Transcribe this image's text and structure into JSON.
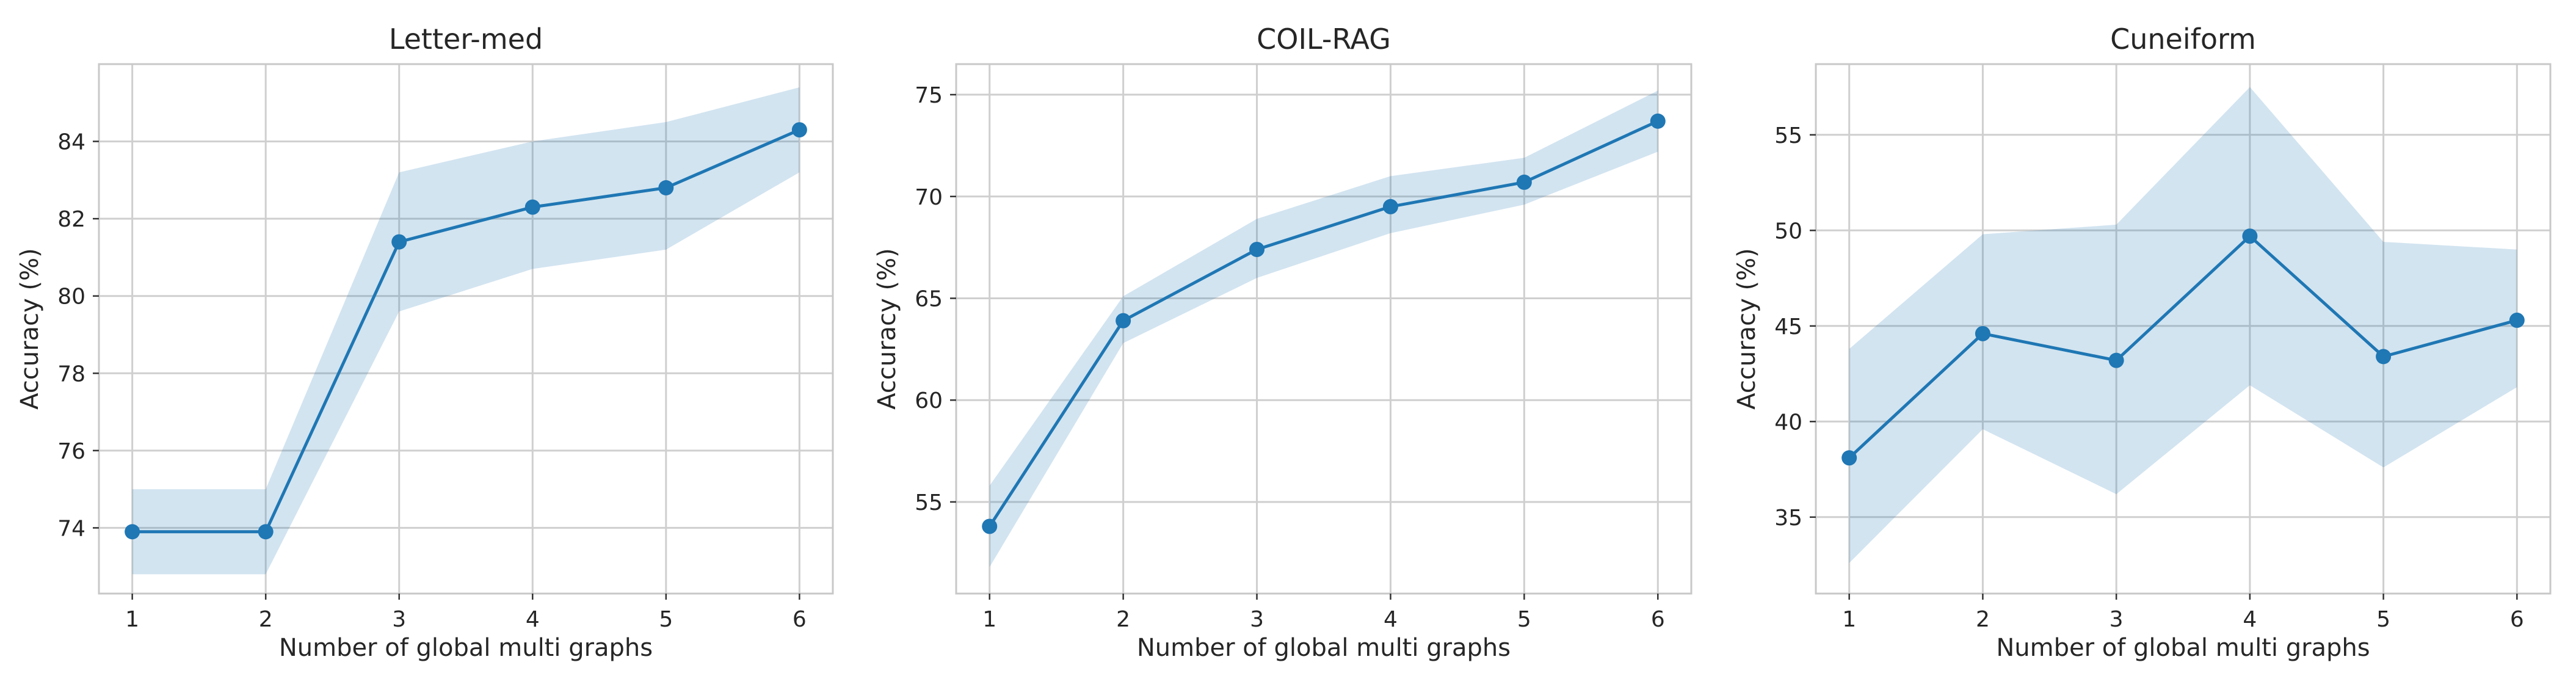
{
  "chart_data": [
    {
      "type": "line",
      "title": "Letter-med",
      "xlabel": "Number of global multi graphs",
      "ylabel": "Accuracy (%)",
      "x": [
        1,
        2,
        3,
        4,
        5,
        6
      ],
      "xlim": [
        0.75,
        6.25
      ],
      "ylim": [
        72.3,
        86.0
      ],
      "yticks": [
        74,
        76,
        78,
        80,
        82,
        84
      ],
      "grid": true,
      "series": [
        {
          "values": [
            73.9,
            73.9,
            81.4,
            82.3,
            82.8,
            84.3
          ],
          "band_lower": [
            72.8,
            72.8,
            79.6,
            80.7,
            81.2,
            83.2
          ],
          "band_upper": [
            75.0,
            75.0,
            83.2,
            84.0,
            84.5,
            85.4
          ]
        }
      ]
    },
    {
      "type": "line",
      "title": "COIL-RAG",
      "xlabel": "Number of global multi graphs",
      "ylabel": "Accuracy (%)",
      "x": [
        1,
        2,
        3,
        4,
        5,
        6
      ],
      "xlim": [
        0.75,
        6.25
      ],
      "ylim": [
        50.5,
        76.5
      ],
      "yticks": [
        55,
        60,
        65,
        70,
        75
      ],
      "grid": true,
      "series": [
        {
          "values": [
            53.8,
            63.9,
            67.4,
            69.5,
            70.7,
            73.7
          ],
          "band_lower": [
            51.8,
            62.8,
            66.0,
            68.2,
            69.6,
            72.2
          ],
          "band_upper": [
            55.8,
            65.1,
            68.9,
            71.0,
            71.9,
            75.2
          ]
        }
      ]
    },
    {
      "type": "line",
      "title": "Cuneiform",
      "xlabel": "Number of global multi graphs",
      "ylabel": "Accuracy (%)",
      "x": [
        1,
        2,
        3,
        4,
        5,
        6
      ],
      "xlim": [
        0.75,
        6.25
      ],
      "ylim": [
        31.0,
        58.7
      ],
      "yticks": [
        35,
        40,
        45,
        50,
        55
      ],
      "grid": true,
      "series": [
        {
          "values": [
            38.1,
            44.6,
            43.2,
            49.7,
            43.4,
            45.3
          ],
          "band_lower": [
            32.6,
            39.6,
            36.2,
            41.9,
            37.6,
            41.8
          ],
          "band_upper": [
            43.8,
            49.8,
            50.3,
            57.5,
            49.4,
            49.0
          ]
        }
      ]
    }
  ],
  "colors": {
    "line": "#1f77b4",
    "band": "#1f77b4",
    "band_opacity": 0.2,
    "grid": "#cfcfcf",
    "frame": "#c8c8c8"
  }
}
